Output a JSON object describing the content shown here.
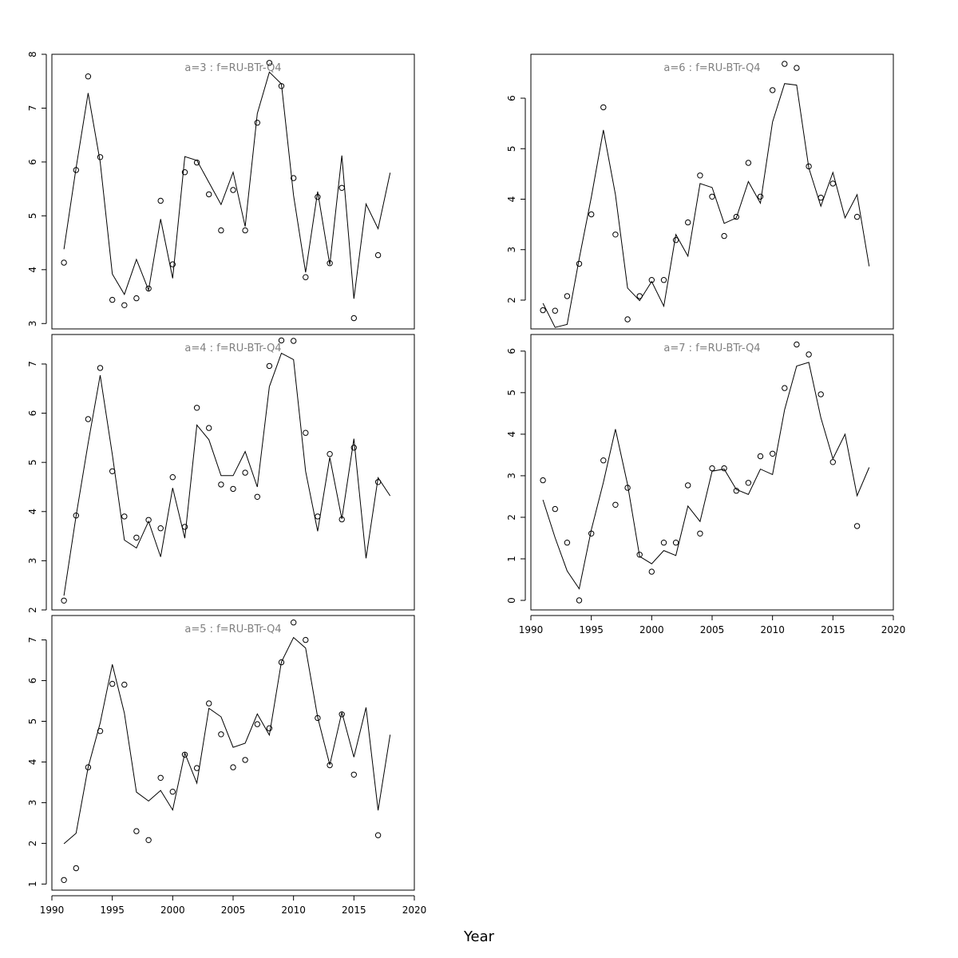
{
  "xlabel": "Year",
  "chart_data": [
    {
      "type": "line",
      "title": "a=3  :  f=RU-BTr-Q4",
      "xlim": [
        1990,
        2020
      ],
      "ylim": [
        2.9,
        8.0
      ],
      "yticks": [
        3,
        4,
        5,
        6,
        7,
        8
      ],
      "xticks": [],
      "observed": {
        "x": [
          1991,
          1992,
          1993,
          1994,
          1995,
          1996,
          1997,
          1998,
          1999,
          2000,
          2001,
          2002,
          2003,
          2004,
          2005,
          2006,
          2007,
          2008,
          2009,
          2010,
          2011,
          2012,
          2013,
          2014,
          2015,
          2017
        ],
        "y": [
          4.13,
          5.85,
          7.59,
          6.09,
          3.44,
          3.34,
          3.47,
          3.65,
          5.28,
          4.1,
          5.81,
          5.99,
          5.4,
          4.73,
          5.48,
          4.73,
          6.73,
          7.84,
          7.41,
          5.7,
          3.86,
          5.35,
          4.12,
          5.52,
          3.1,
          4.27
        ]
      },
      "fitted": {
        "x": [
          1991,
          1992,
          1993,
          1994,
          1995,
          1996,
          1997,
          1998,
          1999,
          2000,
          2001,
          2002,
          2003,
          2004,
          2005,
          2006,
          2007,
          2008,
          2009,
          2010,
          2011,
          2012,
          2013,
          2014,
          2015,
          2016,
          2017,
          2018
        ],
        "y": [
          4.38,
          5.89,
          7.28,
          6.0,
          3.92,
          3.54,
          4.19,
          3.62,
          4.94,
          3.84,
          6.1,
          6.03,
          5.62,
          5.21,
          5.81,
          4.8,
          6.9,
          7.67,
          7.45,
          5.38,
          3.95,
          5.45,
          4.09,
          6.12,
          3.46,
          5.22,
          4.76,
          5.8
        ]
      }
    },
    {
      "type": "line",
      "title": "a=4  :  f=RU-BTr-Q4",
      "xlim": [
        1990,
        2020
      ],
      "ylim": [
        2.0,
        7.6
      ],
      "yticks": [
        2,
        3,
        4,
        5,
        6,
        7
      ],
      "xticks": [],
      "observed": {
        "x": [
          1991,
          1992,
          1993,
          1994,
          1995,
          1996,
          1997,
          1998,
          1999,
          2000,
          2001,
          2002,
          2003,
          2004,
          2005,
          2006,
          2007,
          2008,
          2009,
          2010,
          2011,
          2012,
          2013,
          2014,
          2015,
          2017
        ],
        "y": [
          2.19,
          3.92,
          5.88,
          6.92,
          4.82,
          3.9,
          3.47,
          3.83,
          3.66,
          4.7,
          3.69,
          6.11,
          5.7,
          4.55,
          4.46,
          4.79,
          4.3,
          6.96,
          7.48,
          7.47,
          5.6,
          3.9,
          5.17,
          3.84,
          5.3,
          4.6
        ]
      },
      "fitted": {
        "x": [
          1991,
          1992,
          1993,
          1994,
          1995,
          1996,
          1997,
          1998,
          1999,
          2000,
          2001,
          2002,
          2003,
          2004,
          2005,
          2006,
          2007,
          2008,
          2009,
          2010,
          2011,
          2012,
          2013,
          2014,
          2015,
          2016,
          2017,
          2018
        ],
        "y": [
          2.29,
          3.91,
          5.39,
          6.77,
          5.16,
          3.42,
          3.26,
          3.8,
          3.08,
          4.48,
          3.46,
          5.76,
          5.46,
          4.73,
          4.73,
          5.22,
          4.5,
          6.54,
          7.22,
          7.09,
          4.82,
          3.6,
          5.1,
          3.85,
          5.48,
          3.05,
          4.69,
          4.32
        ]
      }
    },
    {
      "type": "line",
      "title": "a=5  :  f=RU-BTr-Q4",
      "xlim": [
        1990,
        2020
      ],
      "ylim": [
        0.85,
        7.6
      ],
      "yticks": [
        1,
        2,
        3,
        4,
        5,
        6,
        7
      ],
      "xticks": [
        1990,
        1995,
        2000,
        2005,
        2010,
        2015,
        2020
      ],
      "observed": {
        "x": [
          1991,
          1992,
          1993,
          1994,
          1995,
          1996,
          1997,
          1998,
          1999,
          2000,
          2001,
          2002,
          2003,
          2004,
          2005,
          2006,
          2007,
          2008,
          2009,
          2010,
          2011,
          2012,
          2013,
          2014,
          2015,
          2017
        ],
        "y": [
          1.1,
          1.39,
          3.87,
          4.76,
          5.92,
          5.9,
          2.3,
          2.08,
          3.61,
          3.27,
          4.18,
          3.85,
          5.44,
          4.68,
          3.87,
          4.05,
          4.93,
          4.83,
          6.45,
          7.43,
          7.0,
          5.08,
          3.92,
          5.17,
          3.69,
          2.2
        ]
      },
      "fitted": {
        "x": [
          1991,
          1992,
          1993,
          1994,
          1995,
          1996,
          1997,
          1998,
          1999,
          2000,
          2001,
          2002,
          2003,
          2004,
          2005,
          2006,
          2007,
          2008,
          2009,
          2010,
          2011,
          2012,
          2013,
          2014,
          2015,
          2016,
          2017,
          2018
        ],
        "y": [
          1.99,
          2.25,
          3.87,
          4.96,
          6.4,
          5.2,
          3.26,
          3.04,
          3.3,
          2.82,
          4.22,
          3.48,
          5.32,
          5.11,
          4.36,
          4.46,
          5.18,
          4.66,
          6.46,
          7.06,
          6.8,
          5.1,
          3.93,
          5.22,
          4.12,
          5.34,
          2.81,
          4.67
        ]
      }
    },
    {
      "type": "line",
      "title": "a=6  :  f=RU-BTr-Q4",
      "xlim": [
        1990,
        2020
      ],
      "ylim": [
        1.43,
        6.87
      ],
      "yticks": [
        2,
        3,
        4,
        5,
        6
      ],
      "xticks": [],
      "observed": {
        "x": [
          1991,
          1992,
          1993,
          1994,
          1995,
          1996,
          1997,
          1998,
          1999,
          2000,
          2001,
          2002,
          2003,
          2004,
          2005,
          2006,
          2007,
          2008,
          2009,
          2010,
          2011,
          2012,
          2013,
          2014,
          2015,
          2017
        ],
        "y": [
          1.8,
          1.79,
          2.08,
          2.72,
          3.7,
          5.82,
          3.3,
          1.62,
          2.08,
          2.4,
          2.4,
          3.19,
          3.54,
          4.47,
          4.05,
          3.27,
          3.65,
          4.72,
          4.05,
          6.16,
          6.68,
          6.6,
          4.65,
          4.03,
          4.31,
          3.65
        ]
      },
      "fitted": {
        "x": [
          1991,
          1992,
          1993,
          1994,
          1995,
          1996,
          1997,
          1998,
          1999,
          2000,
          2001,
          2002,
          2003,
          2004,
          2005,
          2006,
          2007,
          2008,
          2009,
          2010,
          2011,
          2012,
          2013,
          2014,
          2015,
          2016,
          2017,
          2018
        ],
        "y": [
          1.94,
          1.46,
          1.52,
          2.82,
          4.04,
          5.37,
          4.09,
          2.24,
          1.99,
          2.37,
          1.88,
          3.3,
          2.87,
          4.31,
          4.23,
          3.52,
          3.63,
          4.35,
          3.92,
          5.53,
          6.29,
          6.26,
          4.62,
          3.86,
          4.53,
          3.63,
          4.09,
          2.67
        ]
      }
    },
    {
      "type": "line",
      "title": "a=7  :  f=RU-BTr-Q4",
      "xlim": [
        1990,
        2020
      ],
      "ylim": [
        -0.23,
        6.4
      ],
      "yticks": [
        0,
        1,
        2,
        3,
        4,
        5,
        6
      ],
      "xticks": [
        1990,
        1995,
        2000,
        2005,
        2010,
        2015,
        2020
      ],
      "observed": {
        "x": [
          1991,
          1992,
          1993,
          1994,
          1995,
          1996,
          1997,
          1998,
          1999,
          2000,
          2001,
          2002,
          2003,
          2004,
          2005,
          2006,
          2007,
          2008,
          2009,
          2010,
          2011,
          2012,
          2013,
          2014,
          2015,
          2017
        ],
        "y": [
          2.89,
          2.2,
          1.39,
          0.0,
          1.61,
          3.37,
          2.3,
          2.71,
          1.1,
          0.69,
          1.39,
          1.39,
          2.77,
          1.61,
          3.18,
          3.18,
          2.64,
          2.83,
          3.47,
          3.53,
          5.11,
          6.16,
          5.92,
          4.96,
          3.33,
          1.79
        ]
      },
      "fitted": {
        "x": [
          1991,
          1992,
          1993,
          1994,
          1995,
          1996,
          1997,
          1998,
          1999,
          2000,
          2001,
          2002,
          2003,
          2004,
          2005,
          2006,
          2007,
          2008,
          2009,
          2010,
          2011,
          2012,
          2013,
          2014,
          2015,
          2016,
          2017,
          2018
        ],
        "y": [
          2.42,
          1.51,
          0.71,
          0.28,
          1.7,
          2.84,
          4.12,
          2.79,
          1.06,
          0.88,
          1.2,
          1.08,
          2.27,
          1.9,
          3.11,
          3.16,
          2.67,
          2.55,
          3.16,
          3.03,
          4.59,
          5.64,
          5.73,
          4.4,
          3.41,
          4.0,
          2.52,
          3.2
        ]
      }
    }
  ]
}
